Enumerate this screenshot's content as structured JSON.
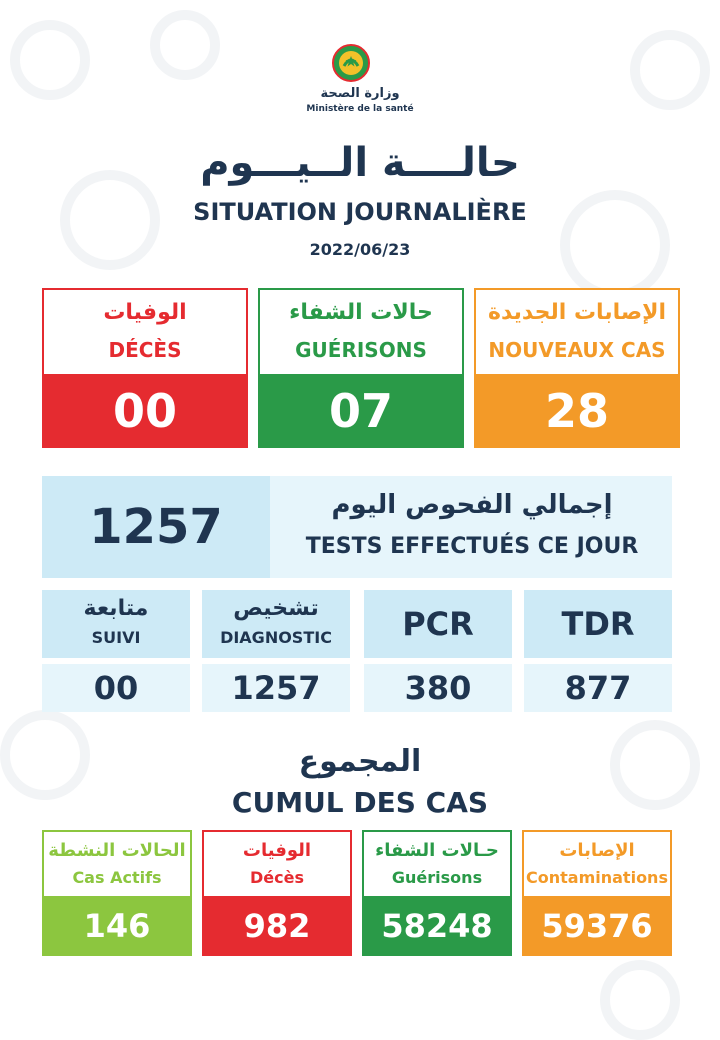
{
  "header": {
    "logo_icon": "ministry-emblem-icon",
    "ministry_ar": "وزارة الصحة",
    "ministry_fr": "Ministère de la santé",
    "title_ar": "حالــــة الــيـــوم",
    "title_fr": "SITUATION JOURNALIÈRE",
    "date": "2022/06/23"
  },
  "colors": {
    "red": "#e52b30",
    "green": "#2a9a48",
    "orange": "#f39a28",
    "lime": "#8cc63f",
    "navy": "#1f3550",
    "light_blue": "#cdeaf6"
  },
  "daily": {
    "deces": {
      "ar": "الوفيات",
      "fr": "DÉCÈS",
      "value": "00"
    },
    "guerisons": {
      "ar": "حالات الشفاء",
      "fr": "GUÉRISONS",
      "value": "07"
    },
    "nouveaux": {
      "ar": "الإصابات الجديدة",
      "fr": "NOUVEAUX CAS",
      "value": "28"
    }
  },
  "tests": {
    "total": "1257",
    "ar": "إجمالي الفحوص اليوم",
    "fr": "TESTS EFFECTUÉS CE JOUR",
    "suivi": {
      "ar": "متابعة",
      "fr": "SUIVI",
      "value": "00"
    },
    "diagnostic": {
      "ar": "تشخيص",
      "fr": "DIAGNOSTIC",
      "value": "1257"
    },
    "pcr": {
      "label": "PCR",
      "value": "380"
    },
    "tdr": {
      "label": "TDR",
      "value": "877"
    }
  },
  "cumul": {
    "ar": "المجموع",
    "fr": "CUMUL DES CAS",
    "actifs": {
      "ar": "الحالات النشطة",
      "fr": "Cas Actifs",
      "value": "146"
    },
    "deces": {
      "ar": "الوفيات",
      "fr": "Décès",
      "value": "982"
    },
    "guerisons": {
      "ar": "حـالات الشفاء",
      "fr": "Guérisons",
      "value": "58248"
    },
    "contaminations": {
      "ar": "الإصابات",
      "fr": "Contaminations",
      "value": "59376"
    }
  }
}
